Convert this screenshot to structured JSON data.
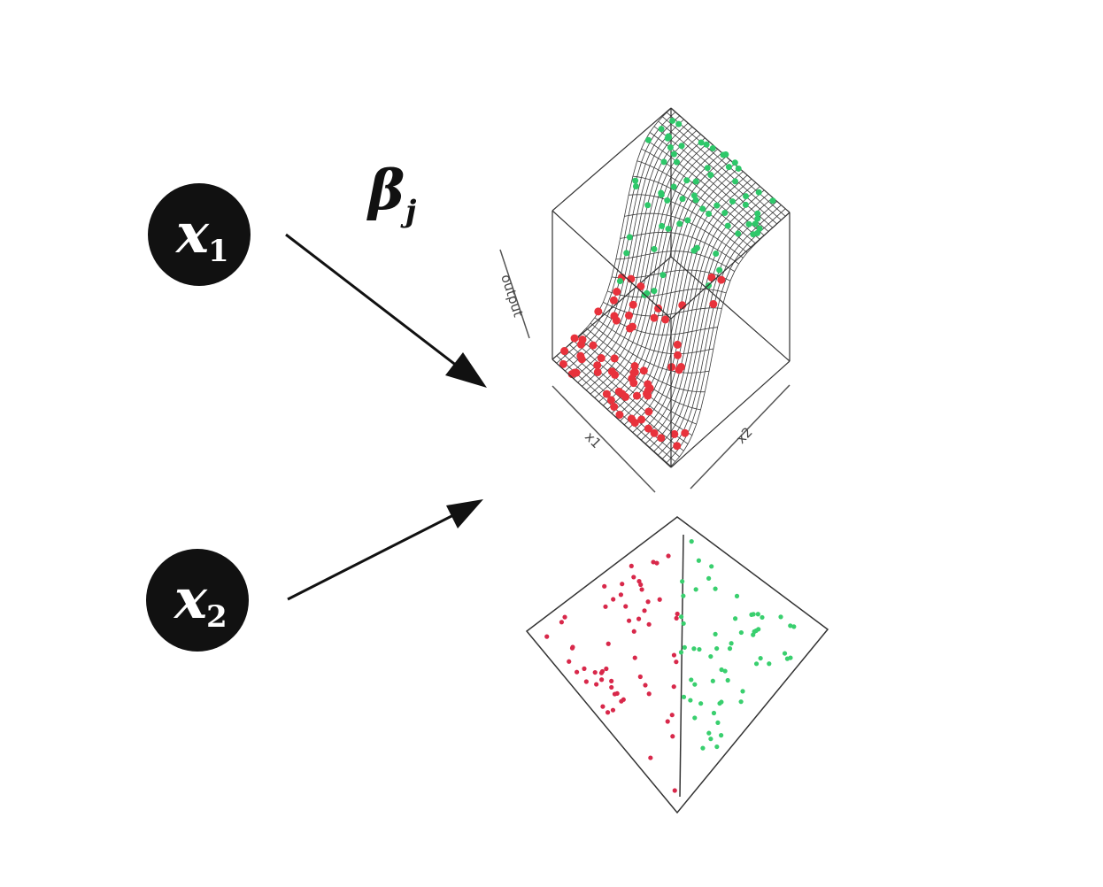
{
  "nodes": [
    {
      "id": "x1",
      "symbol": "x",
      "subscript": "1"
    },
    {
      "id": "x2",
      "symbol": "x",
      "subscript": "2"
    }
  ],
  "weight_label": {
    "symbol": "β",
    "subscript": "j"
  },
  "surface_plot": {
    "axis_labels": {
      "vertical": "output",
      "left": "x1",
      "right": "x2"
    },
    "colors": {
      "class_a": "#e8323c",
      "class_b": "#2ec86a",
      "mesh": "#3a3a3a"
    }
  },
  "projection_plot": {
    "colors": {
      "class_a": "#d8284a",
      "class_b": "#39cf6e",
      "boundary": "#333333"
    }
  }
}
